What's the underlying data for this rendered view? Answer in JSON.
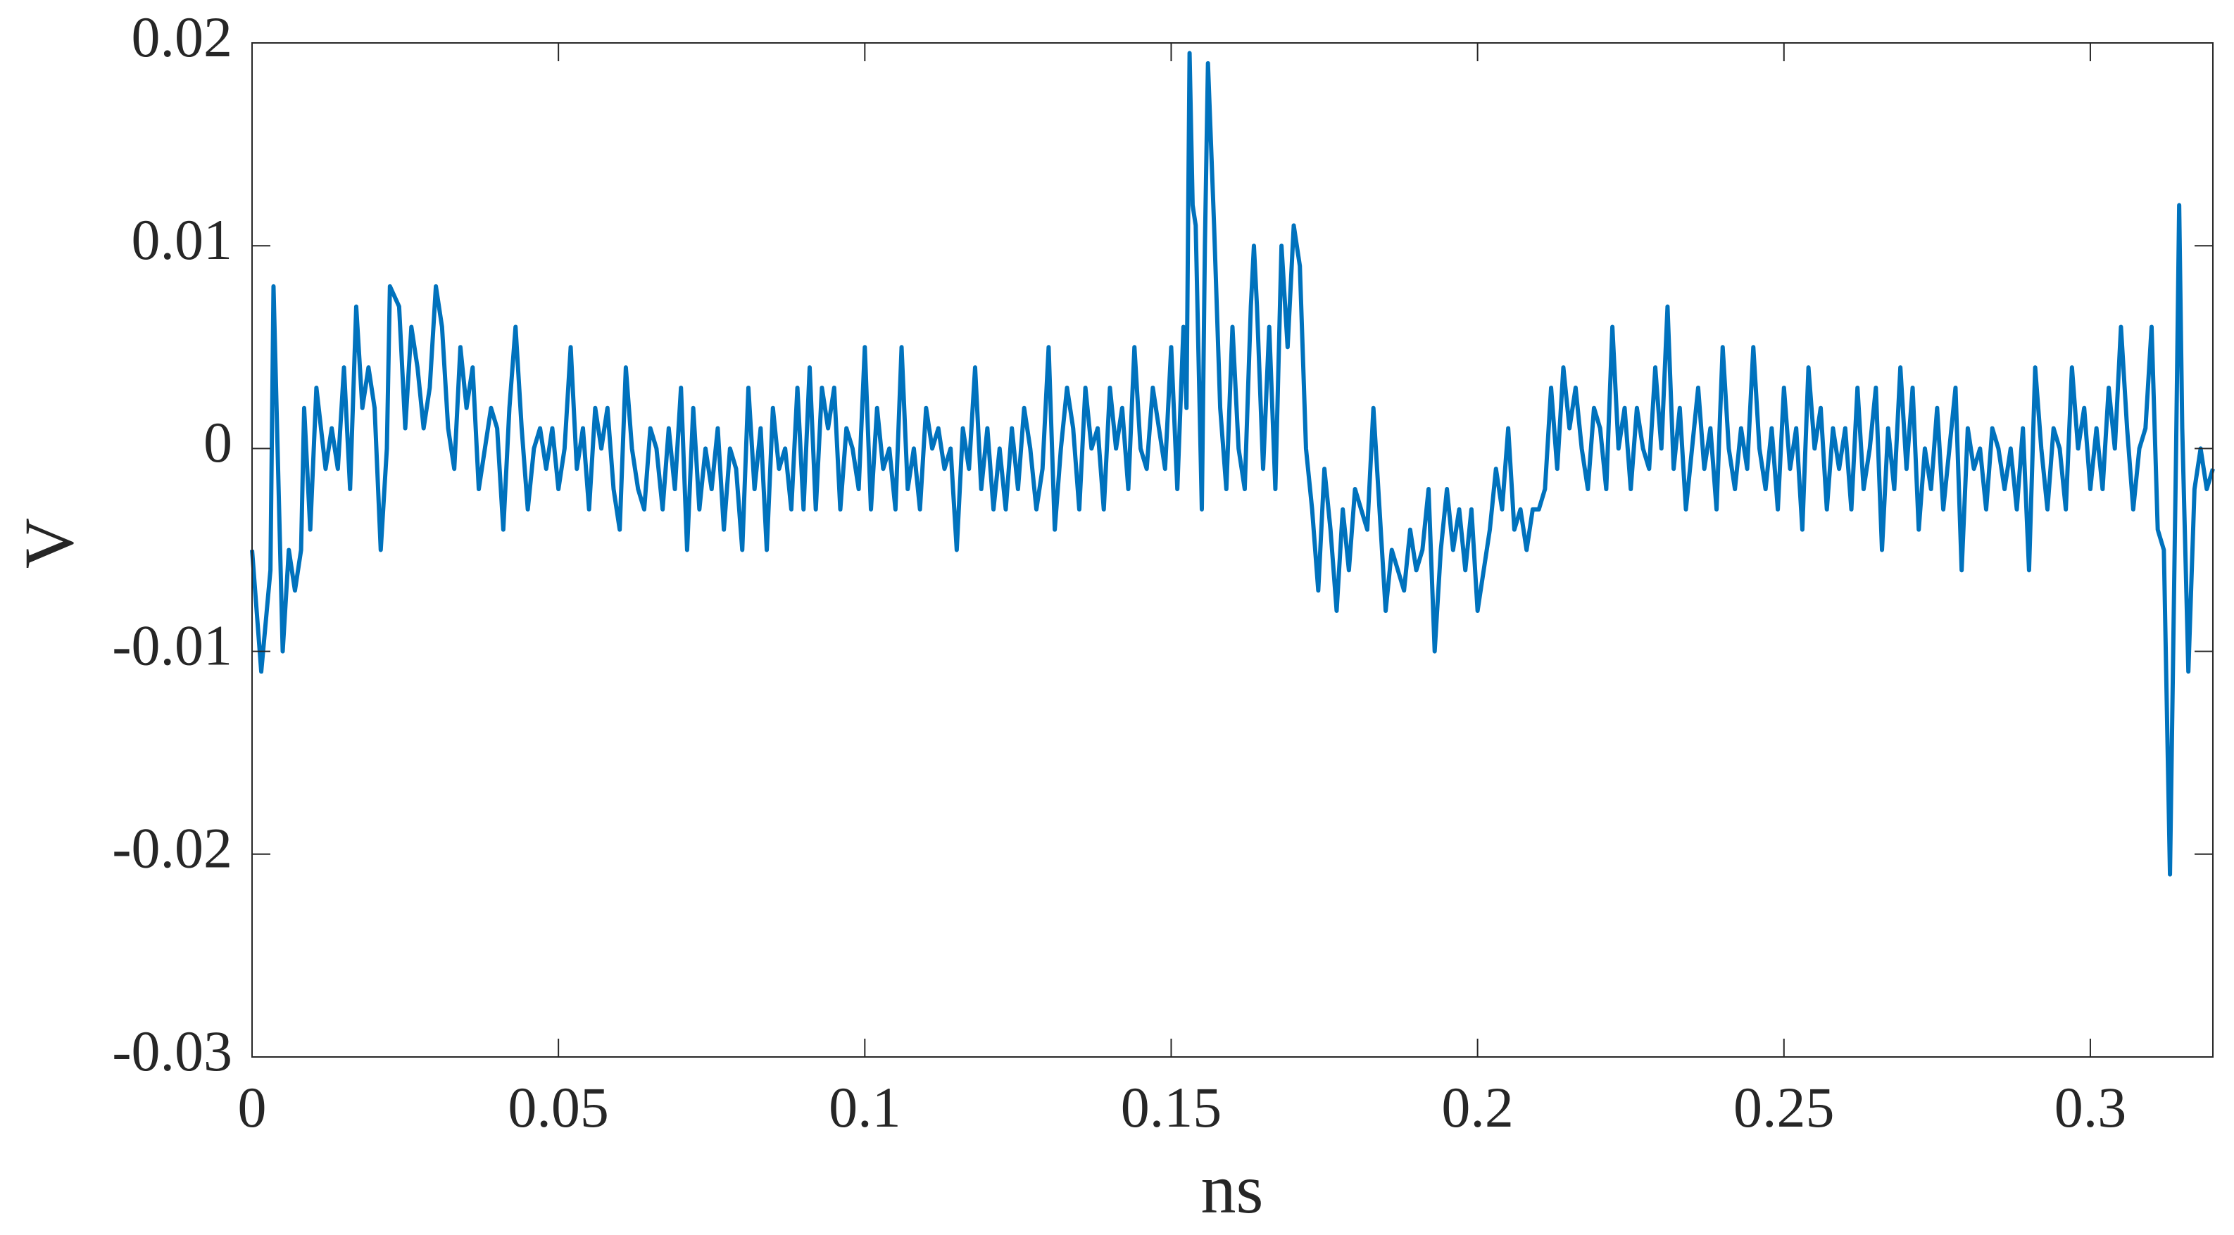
{
  "chart_data": {
    "type": "line",
    "x_label": "ns",
    "y_label": "V",
    "xlim": [
      0,
      0.32
    ],
    "ylim": [
      -0.03,
      0.02
    ],
    "xticks": [
      0,
      0.05,
      0.1,
      0.15,
      0.2,
      0.25,
      0.3
    ],
    "yticks": [
      -0.03,
      -0.02,
      -0.01,
      0,
      0.01,
      0.02
    ],
    "grid": false,
    "series": [
      {
        "color": "#0072bd",
        "x": [
          0,
          0.001,
          0.0015,
          0.003,
          0.0035,
          0.005,
          0.006,
          0.007,
          0.008,
          0.0085,
          0.0095,
          0.0105,
          0.012,
          0.013,
          0.014,
          0.015,
          0.016,
          0.017,
          0.018,
          0.019,
          0.02,
          0.021,
          0.022,
          0.0225,
          0.024,
          0.025,
          0.026,
          0.027,
          0.028,
          0.029,
          0.03,
          0.031,
          0.032,
          0.033,
          0.034,
          0.035,
          0.036,
          0.037,
          0.039,
          0.04,
          0.041,
          0.042,
          0.043,
          0.044,
          0.045,
          0.046,
          0.047,
          0.048,
          0.049,
          0.05,
          0.051,
          0.052,
          0.053,
          0.054,
          0.055,
          0.056,
          0.057,
          0.058,
          0.059,
          0.06,
          0.061,
          0.062,
          0.063,
          0.064,
          0.065,
          0.066,
          0.067,
          0.068,
          0.069,
          0.07,
          0.071,
          0.072,
          0.073,
          0.074,
          0.075,
          0.076,
          0.077,
          0.078,
          0.079,
          0.08,
          0.081,
          0.082,
          0.083,
          0.084,
          0.085,
          0.086,
          0.087,
          0.088,
          0.089,
          0.09,
          0.091,
          0.092,
          0.093,
          0.094,
          0.095,
          0.096,
          0.097,
          0.098,
          0.099,
          0.1,
          0.101,
          0.102,
          0.103,
          0.104,
          0.105,
          0.106,
          0.107,
          0.108,
          0.109,
          0.11,
          0.111,
          0.112,
          0.113,
          0.114,
          0.115,
          0.116,
          0.117,
          0.118,
          0.119,
          0.12,
          0.121,
          0.122,
          0.123,
          0.124,
          0.125,
          0.126,
          0.127,
          0.128,
          0.129,
          0.13,
          0.131,
          0.132,
          0.133,
          0.134,
          0.135,
          0.136,
          0.137,
          0.138,
          0.139,
          0.14,
          0.141,
          0.142,
          0.143,
          0.144,
          0.145,
          0.146,
          0.147,
          0.149,
          0.15,
          0.151,
          0.152,
          0.1525,
          0.153,
          0.1535,
          0.154,
          0.155,
          0.1555,
          0.156,
          0.157,
          0.158,
          0.159,
          0.16,
          0.161,
          0.162,
          0.163,
          0.1635,
          0.164,
          0.165,
          0.166,
          0.167,
          0.168,
          0.169,
          0.17,
          0.171,
          0.172,
          0.173,
          0.174,
          0.175,
          0.176,
          0.177,
          0.178,
          0.179,
          0.18,
          0.181,
          0.182,
          0.183,
          0.184,
          0.185,
          0.186,
          0.187,
          0.188,
          0.189,
          0.19,
          0.191,
          0.192,
          0.193,
          0.194,
          0.195,
          0.196,
          0.197,
          0.198,
          0.199,
          0.2,
          0.201,
          0.202,
          0.203,
          0.204,
          0.205,
          0.206,
          0.207,
          0.208,
          0.209,
          0.21,
          0.211,
          0.212,
          0.213,
          0.214,
          0.215,
          0.216,
          0.217,
          0.218,
          0.219,
          0.22,
          0.221,
          0.222,
          0.223,
          0.224,
          0.225,
          0.226,
          0.227,
          0.228,
          0.229,
          0.23,
          0.231,
          0.232,
          0.233,
          0.234,
          0.235,
          0.236,
          0.237,
          0.238,
          0.239,
          0.24,
          0.241,
          0.242,
          0.243,
          0.244,
          0.245,
          0.246,
          0.247,
          0.248,
          0.249,
          0.25,
          0.251,
          0.252,
          0.253,
          0.254,
          0.255,
          0.256,
          0.257,
          0.258,
          0.259,
          0.26,
          0.261,
          0.262,
          0.263,
          0.264,
          0.265,
          0.266,
          0.267,
          0.268,
          0.269,
          0.27,
          0.271,
          0.272,
          0.273,
          0.274,
          0.275,
          0.276,
          0.277,
          0.278,
          0.279,
          0.28,
          0.281,
          0.282,
          0.283,
          0.284,
          0.285,
          0.286,
          0.287,
          0.288,
          0.289,
          0.29,
          0.291,
          0.292,
          0.293,
          0.294,
          0.295,
          0.296,
          0.297,
          0.298,
          0.299,
          0.3,
          0.301,
          0.302,
          0.303,
          0.304,
          0.305,
          0.306,
          0.307,
          0.308,
          0.309,
          0.31,
          0.311,
          0.312,
          0.313,
          0.314,
          0.3145,
          0.315,
          0.316,
          0.317,
          0.318,
          0.319,
          0.32
        ],
        "values": [
          -0.005,
          -0.009,
          -0.011,
          -0.006,
          0.008,
          -0.01,
          -0.005,
          -0.007,
          -0.005,
          0.002,
          -0.004,
          0.003,
          -0.001,
          0.001,
          -0.001,
          0.004,
          -0.002,
          0.007,
          0.002,
          0.004,
          0.002,
          -0.005,
          0,
          0.008,
          0.007,
          0.001,
          0.006,
          0.004,
          0.001,
          0.003,
          0.008,
          0.006,
          0.001,
          -0.001,
          0.005,
          0.002,
          0.004,
          -0.002,
          0.002,
          0.001,
          -0.004,
          0.002,
          0.006,
          0.001,
          -0.003,
          0,
          0.001,
          -0.001,
          0.001,
          -0.002,
          0,
          0.005,
          -0.001,
          0.001,
          -0.003,
          0.002,
          0,
          0.002,
          -0.002,
          -0.004,
          0.004,
          0,
          -0.002,
          -0.003,
          0.001,
          0,
          -0.003,
          0.001,
          -0.002,
          0.003,
          -0.005,
          0.002,
          -0.003,
          0,
          -0.002,
          0.001,
          -0.004,
          0,
          -0.001,
          -0.005,
          0.003,
          -0.002,
          0.001,
          -0.005,
          0.002,
          -0.001,
          0,
          -0.003,
          0.003,
          -0.003,
          0.004,
          -0.003,
          0.003,
          0.001,
          0.003,
          -0.003,
          0.001,
          0,
          -0.002,
          0.005,
          -0.003,
          0.002,
          -0.001,
          0,
          -0.003,
          0.005,
          -0.002,
          0,
          -0.003,
          0.002,
          0,
          0.001,
          -0.001,
          0,
          -0.005,
          0.001,
          -0.001,
          0.004,
          -0.002,
          0.001,
          -0.003,
          0,
          -0.003,
          0.001,
          -0.002,
          0.002,
          0,
          -0.003,
          -0.001,
          0.005,
          -0.004,
          0,
          0.003,
          0.001,
          -0.003,
          0.003,
          0,
          0.001,
          -0.003,
          0.003,
          0,
          0.002,
          -0.002,
          0.005,
          0,
          -0.001,
          0.003,
          -0.001,
          0.005,
          -0.002,
          0.006,
          0.002,
          0.0195,
          0.012,
          0.011,
          -0.003,
          0.01,
          0.019,
          0.011,
          0.002,
          -0.002,
          0.006,
          0,
          -0.002,
          0.007,
          0.01,
          0.007,
          -0.001,
          0.006,
          -0.002,
          0.01,
          0.005,
          0.011,
          0.009,
          0,
          -0.003,
          -0.007,
          -0.001,
          -0.004,
          -0.008,
          -0.003,
          -0.006,
          -0.002,
          -0.003,
          -0.004,
          0.002,
          -0.003,
          -0.008,
          -0.005,
          -0.006,
          -0.007,
          -0.004,
          -0.006,
          -0.005,
          -0.002,
          -0.01,
          -0.005,
          -0.002,
          -0.005,
          -0.003,
          -0.006,
          -0.003,
          -0.008,
          -0.006,
          -0.004,
          -0.001,
          -0.003,
          0.001,
          -0.004,
          -0.003,
          -0.005,
          -0.003,
          -0.003,
          -0.002,
          0.003,
          -0.001,
          0.004,
          0.001,
          0.003,
          0,
          -0.002,
          0.002,
          0.001,
          -0.002,
          0.006,
          0,
          0.002,
          -0.002,
          0.002,
          0,
          -0.001,
          0.004,
          0,
          0.007,
          -0.001,
          0.002,
          -0.003,
          0,
          0.003,
          -0.001,
          0.001,
          -0.003,
          0.005,
          0,
          -0.002,
          0.001,
          -0.001,
          0.005,
          0,
          -0.002,
          0.001,
          -0.003,
          0.003,
          -0.001,
          0.001,
          -0.004,
          0.004,
          0,
          0.002,
          -0.003,
          0.001,
          -0.001,
          0.001,
          -0.003,
          0.003,
          -0.002,
          0,
          0.003,
          -0.005,
          0.001,
          -0.002,
          0.004,
          -0.001,
          0.003,
          -0.004,
          0,
          -0.002,
          0.002,
          -0.003,
          0,
          0.003,
          -0.006,
          0.001,
          -0.001,
          0,
          -0.003,
          0.001,
          0,
          -0.002,
          0,
          -0.003,
          0.001,
          -0.006,
          0.004,
          0,
          -0.003,
          0.001,
          0,
          -0.003,
          0.004,
          0,
          0.002,
          -0.002,
          0.001,
          -0.002,
          0.003,
          0,
          0.006,
          0.001,
          -0.003,
          0,
          0.001,
          0.006,
          -0.004,
          -0.005,
          -0.021,
          0,
          0.012,
          0.001,
          -0.011,
          -0.002,
          0,
          -0.002,
          -0.001
        ]
      }
    ]
  }
}
